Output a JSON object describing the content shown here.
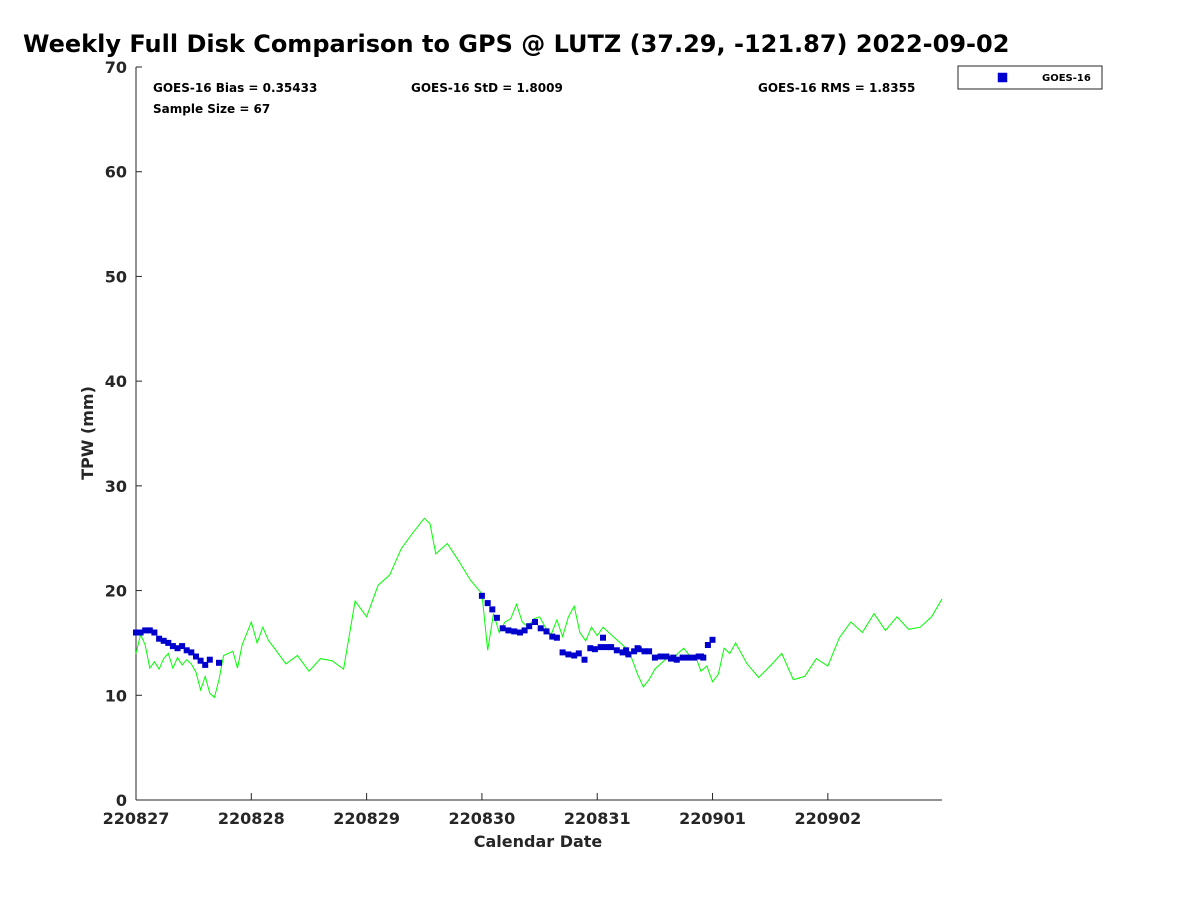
{
  "chart_data": {
    "type": "scatter",
    "title": "Weekly Full Disk Comparison to GPS @ LUTZ (37.29, -121.87) 2022-09-02",
    "xlabel": "Calendar Date",
    "ylabel": "TPW (mm)",
    "x_unit": "days",
    "xlim": [
      0,
      6.99
    ],
    "ylim": [
      0,
      70
    ],
    "x_ticks": [
      0,
      1,
      2,
      3,
      4,
      5,
      6
    ],
    "x_tick_labels": [
      "220827",
      "220828",
      "220829",
      "220830",
      "220831",
      "220901",
      "220902"
    ],
    "y_ticks": [
      0,
      10,
      20,
      30,
      40,
      50,
      60,
      70
    ],
    "stats": {
      "bias": "GOES-16 Bias = 0.35433",
      "std": "GOES-16 StD = 1.8009",
      "rms": "GOES-16 RMS = 1.8355",
      "sample": "Sample Size = 67"
    },
    "legend": {
      "label": "GOES-16",
      "placement": "outside-top-right"
    },
    "gps_color": "#00ff00",
    "goes_color": "#0000cc",
    "gps_series": {
      "x": [
        0.0,
        0.04,
        0.08,
        0.12,
        0.16,
        0.2,
        0.24,
        0.28,
        0.32,
        0.36,
        0.4,
        0.44,
        0.48,
        0.52,
        0.56,
        0.6,
        0.64,
        0.68,
        0.72,
        0.76,
        0.8,
        0.84,
        0.88,
        0.92,
        1.0,
        1.05,
        1.1,
        1.15,
        1.2,
        1.3,
        1.4,
        1.5,
        1.6,
        1.7,
        1.8,
        1.9,
        2.0,
        2.1,
        2.2,
        2.3,
        2.4,
        2.5,
        2.55,
        2.6,
        2.7,
        2.8,
        2.9,
        3.0,
        3.05,
        3.1,
        3.15,
        3.2,
        3.25,
        3.3,
        3.35,
        3.4,
        3.45,
        3.5,
        3.55,
        3.6,
        3.65,
        3.7,
        3.75,
        3.8,
        3.85,
        3.9,
        3.95,
        4.0,
        4.05,
        4.1,
        4.15,
        4.2,
        4.25,
        4.3,
        4.35,
        4.4,
        4.45,
        4.5,
        4.55,
        4.6,
        4.65,
        4.7,
        4.75,
        4.8,
        4.85,
        4.9,
        4.95,
        5.0,
        5.05,
        5.1,
        5.15,
        5.2,
        5.3,
        5.4,
        5.5,
        5.6,
        5.7,
        5.8,
        5.9,
        6.0,
        6.1,
        6.2,
        6.3,
        6.4,
        6.5,
        6.6,
        6.7,
        6.8,
        6.9,
        6.99
      ],
      "y": [
        14.0,
        15.8,
        14.8,
        12.6,
        13.2,
        12.5,
        13.5,
        14.0,
        12.6,
        13.6,
        12.9,
        13.4,
        13.0,
        12.2,
        10.5,
        11.8,
        10.2,
        9.8,
        11.5,
        13.8,
        14.0,
        14.2,
        12.6,
        14.8,
        17.0,
        15.0,
        16.5,
        15.2,
        14.5,
        13.0,
        13.8,
        12.3,
        13.5,
        13.3,
        12.5,
        19.0,
        17.5,
        20.5,
        21.5,
        24.0,
        25.5,
        26.9,
        26.4,
        23.5,
        24.5,
        22.8,
        21.0,
        19.7,
        14.3,
        17.8,
        16.0,
        17.0,
        17.3,
        18.7,
        17.0,
        16.5,
        17.3,
        17.5,
        16.5,
        15.8,
        17.2,
        15.6,
        17.5,
        18.5,
        16.0,
        15.2,
        16.5,
        15.7,
        16.5,
        16.0,
        15.5,
        15.0,
        14.5,
        13.5,
        12.0,
        10.8,
        11.5,
        12.5,
        13.0,
        13.5,
        13.3,
        14.0,
        14.5,
        13.8,
        13.8,
        12.3,
        12.8,
        11.3,
        12.0,
        14.5,
        14.0,
        15.0,
        13.0,
        11.7,
        12.8,
        14.0,
        11.5,
        11.8,
        13.5,
        12.8,
        15.5,
        17.0,
        16.0,
        17.8,
        16.2,
        17.5,
        16.3,
        16.5,
        17.5,
        19.2
      ]
    },
    "goes_series": {
      "x": [
        0.0,
        0.04,
        0.08,
        0.12,
        0.16,
        0.2,
        0.24,
        0.28,
        0.32,
        0.36,
        0.4,
        0.44,
        0.48,
        0.52,
        0.56,
        0.6,
        0.64,
        0.72,
        3.0,
        3.05,
        3.09,
        3.13,
        3.18,
        3.23,
        3.28,
        3.33,
        3.37,
        3.41,
        3.46,
        3.51,
        3.56,
        3.61,
        3.65,
        3.7,
        3.75,
        3.8,
        3.84,
        3.89,
        3.94,
        3.98,
        4.03,
        4.08,
        4.12,
        4.17,
        4.22,
        4.27,
        4.32,
        4.36,
        4.41,
        4.45,
        4.5,
        4.55,
        4.6,
        4.64,
        4.69,
        4.74,
        4.79,
        4.84,
        4.88,
        4.92,
        4.96,
        5.0,
        4.05,
        4.35,
        4.25,
        4.66,
        4.9
      ],
      "y": [
        16.0,
        16.0,
        16.2,
        16.2,
        16.0,
        15.4,
        15.2,
        15.0,
        14.7,
        14.5,
        14.7,
        14.3,
        14.1,
        13.7,
        13.3,
        12.9,
        13.4,
        13.1,
        19.5,
        18.8,
        18.2,
        17.4,
        16.4,
        16.2,
        16.1,
        16.0,
        16.2,
        16.6,
        17.0,
        16.4,
        16.1,
        15.6,
        15.5,
        14.1,
        13.9,
        13.8,
        14.0,
        13.4,
        14.5,
        14.4,
        14.6,
        14.6,
        14.6,
        14.3,
        14.1,
        13.9,
        14.2,
        14.4,
        14.2,
        14.2,
        13.6,
        13.7,
        13.7,
        13.5,
        13.4,
        13.6,
        13.6,
        13.6,
        13.7,
        13.6,
        14.8,
        15.3,
        15.5,
        14.5,
        14.3,
        13.6,
        13.7
      ]
    }
  }
}
